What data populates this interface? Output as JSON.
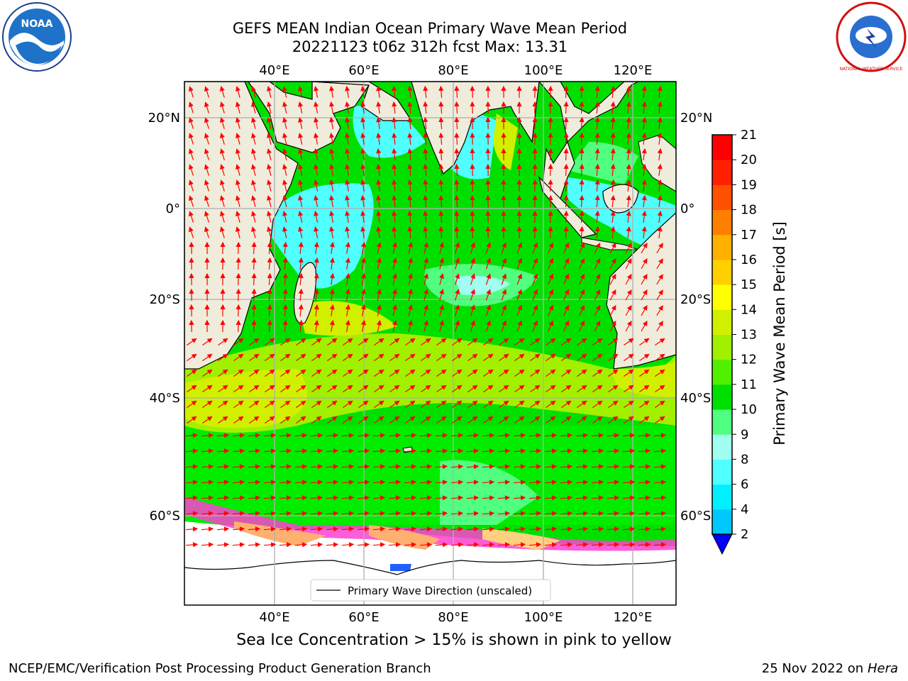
{
  "title": {
    "line1": "GEFS MEAN Indian Ocean Primary Wave Mean Period",
    "line2": "20221123 t06z 312h fcst   Max: 13.31"
  },
  "axes": {
    "lon_ticks": [
      "40°E",
      "60°E",
      "80°E",
      "100°E",
      "120°E"
    ],
    "lat_ticks": [
      "20°N",
      "0°",
      "20°S",
      "40°S",
      "60°S"
    ]
  },
  "colorbar": {
    "label": "Primary Wave Mean Period [s]",
    "ticks": [
      "2",
      "4",
      "6",
      "8",
      "9",
      "10",
      "11",
      "12",
      "13",
      "14",
      "15",
      "16",
      "17",
      "18",
      "19",
      "20",
      "21"
    ],
    "colors": [
      "#0050ff",
      "#00c8ff",
      "#00f0ff",
      "#50ffff",
      "#a0fff0",
      "#50ff80",
      "#00e000",
      "#50f000",
      "#a0f000",
      "#d0f000",
      "#ffff00",
      "#ffd000",
      "#ffb000",
      "#ff8000",
      "#ff5000",
      "#ff2000",
      "#ff0000"
    ]
  },
  "legend": {
    "label": "Primary Wave Direction (unscaled)"
  },
  "note": "Sea Ice Concentration > 15% is shown in pink to yellow",
  "footer": {
    "credit": "NCEP/EMC/Verification Post Processing Product Generation Branch",
    "date": "25 Nov 2022 on",
    "host": "Hera"
  },
  "logos": {
    "noaa_text": "NOAA",
    "nws_text": "NATIONAL WEATHER SERVICE"
  },
  "colors": {
    "land": "#efecdc",
    "arrow": "#ff0000",
    "grid": "#b0b0b0"
  }
}
